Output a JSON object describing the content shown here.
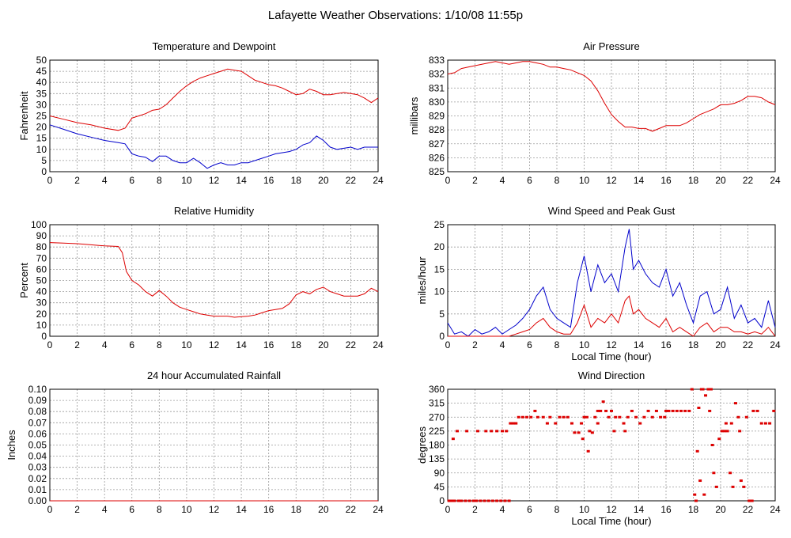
{
  "page": {
    "title": "Lafayette Weather Observations: 1/10/08 11:55p"
  },
  "colors": {
    "red": "#dd0000",
    "blue": "#0000cc",
    "grid": "#9a9a9a"
  },
  "chart_data": [
    {
      "id": "temp",
      "type": "line",
      "title": "Temperature and Dewpoint",
      "xlabel": "",
      "ylabel": "Fahrenheit",
      "xlim": [
        0,
        24
      ],
      "ylim": [
        0,
        50
      ],
      "xticks": [
        "0",
        "2",
        "4",
        "6",
        "8",
        "10",
        "12",
        "14",
        "16",
        "18",
        "20",
        "22",
        "24"
      ],
      "yticks": [
        "0",
        "5",
        "10",
        "15",
        "20",
        "25",
        "30",
        "35",
        "40",
        "45",
        "50"
      ],
      "grid": true,
      "series": [
        {
          "color": "#dd0000",
          "x": [
            0,
            1,
            2,
            3,
            4,
            5,
            5.5,
            6,
            6.5,
            7,
            7.5,
            8,
            8.5,
            9,
            9.5,
            10,
            10.5,
            11,
            11.5,
            12,
            12.5,
            13,
            13.5,
            14,
            14.5,
            15,
            15.5,
            16,
            16.5,
            17,
            17.5,
            18,
            18.5,
            19,
            19.5,
            20,
            20.5,
            21,
            21.5,
            22,
            22.5,
            23,
            23.5,
            24
          ],
          "y": [
            25,
            23.5,
            22,
            21,
            19.5,
            18.5,
            19.5,
            24,
            25,
            26,
            27.5,
            28,
            30,
            33,
            36,
            38.5,
            40.5,
            42,
            43,
            44,
            45,
            46,
            45.5,
            45,
            43,
            41,
            40,
            39,
            38.5,
            37.5,
            36,
            34.5,
            35,
            37,
            36,
            34.5,
            34.5,
            35,
            35.5,
            35,
            34.5,
            33,
            31,
            33
          ]
        },
        {
          "color": "#0000cc",
          "x": [
            0,
            1,
            2,
            3,
            4,
            5,
            5.5,
            6,
            6.5,
            7,
            7.5,
            8,
            8.5,
            9,
            9.5,
            10,
            10.5,
            11,
            11.5,
            12,
            12.5,
            13,
            13.5,
            14,
            14.5,
            15,
            15.5,
            16,
            16.5,
            17,
            17.5,
            18,
            18.5,
            19,
            19.5,
            20,
            20.5,
            21,
            21.5,
            22,
            22.5,
            23,
            23.5,
            24
          ],
          "y": [
            21,
            19,
            17,
            15.5,
            14,
            13,
            12.5,
            8,
            7,
            6.5,
            4.5,
            7,
            7,
            5,
            4,
            4,
            6,
            4,
            1.5,
            3,
            4,
            3,
            3,
            4,
            4,
            5,
            6,
            7,
            8,
            8.5,
            9,
            10,
            12,
            13,
            16,
            14,
            11,
            10,
            10.5,
            11,
            10,
            11,
            11,
            11
          ]
        }
      ]
    },
    {
      "id": "pressure",
      "type": "line",
      "title": "Air Pressure",
      "xlabel": "",
      "ylabel": "millibars",
      "xlim": [
        0,
        24
      ],
      "ylim": [
        825,
        833
      ],
      "xticks": [
        "0",
        "2",
        "4",
        "6",
        "8",
        "10",
        "12",
        "14",
        "16",
        "18",
        "20",
        "22",
        "24"
      ],
      "yticks": [
        "825",
        "826",
        "827",
        "828",
        "829",
        "830",
        "831",
        "832",
        "833"
      ],
      "grid": true,
      "series": [
        {
          "color": "#dd0000",
          "x": [
            0,
            0.5,
            1,
            1.5,
            2,
            2.5,
            3,
            3.5,
            4,
            4.5,
            5,
            5.5,
            6,
            6.5,
            7,
            7.5,
            8,
            8.5,
            9,
            9.5,
            10,
            10.5,
            11,
            11.5,
            12,
            12.5,
            13,
            13.5,
            14,
            14.5,
            15,
            15.5,
            16,
            16.5,
            17,
            17.5,
            18,
            18.5,
            19,
            19.5,
            20,
            20.5,
            21,
            21.5,
            22,
            22.5,
            23,
            23.5,
            24
          ],
          "y": [
            832,
            832.1,
            832.4,
            832.5,
            832.6,
            832.7,
            832.8,
            832.9,
            832.8,
            832.7,
            832.8,
            832.9,
            832.9,
            832.8,
            832.7,
            832.5,
            832.5,
            832.4,
            832.3,
            832.1,
            831.9,
            831.5,
            830.8,
            829.9,
            829.1,
            828.6,
            828.2,
            828.2,
            828.1,
            828.1,
            827.9,
            828.1,
            828.3,
            828.3,
            828.3,
            828.5,
            828.8,
            829.1,
            829.3,
            829.5,
            829.8,
            829.8,
            829.9,
            830.1,
            830.4,
            830.4,
            830.3,
            830,
            829.8
          ]
        }
      ]
    },
    {
      "id": "humidity",
      "type": "line",
      "title": "Relative Humidity",
      "xlabel": "",
      "ylabel": "Percent",
      "xlim": [
        0,
        24
      ],
      "ylim": [
        0,
        100
      ],
      "xticks": [
        "0",
        "2",
        "4",
        "6",
        "8",
        "10",
        "12",
        "14",
        "16",
        "18",
        "20",
        "22",
        "24"
      ],
      "yticks": [
        "0",
        "10",
        "20",
        "30",
        "40",
        "50",
        "60",
        "70",
        "80",
        "90",
        "100"
      ],
      "grid": true,
      "series": [
        {
          "color": "#dd0000",
          "x": [
            0,
            1,
            2,
            3,
            4,
            5,
            5.3,
            5.6,
            6,
            6.5,
            7,
            7.5,
            8,
            8.5,
            9,
            9.5,
            10,
            10.5,
            11,
            11.5,
            12,
            12.5,
            13,
            13.5,
            14,
            14.5,
            15,
            15.5,
            16,
            16.5,
            17,
            17.5,
            18,
            18.5,
            19,
            19.5,
            20,
            20.5,
            21,
            21.5,
            22,
            22.5,
            23,
            23.5,
            24
          ],
          "y": [
            84,
            83.5,
            83,
            82,
            81,
            80.5,
            75,
            58,
            50,
            46,
            40,
            36,
            41,
            36,
            30,
            26,
            24,
            22,
            20,
            19,
            18,
            18,
            18,
            17,
            17.5,
            18,
            19,
            21,
            23,
            24,
            25,
            29,
            37,
            40,
            38,
            42,
            44,
            40,
            38,
            36,
            36,
            36,
            38,
            43,
            40
          ]
        }
      ]
    },
    {
      "id": "wind",
      "type": "line",
      "title": "Wind Speed and Peak Gust",
      "xlabel": "Local Time (hour)",
      "ylabel": "miles/hour",
      "xlim": [
        0,
        24
      ],
      "ylim": [
        0,
        25
      ],
      "xticks": [
        "0",
        "2",
        "4",
        "6",
        "8",
        "10",
        "12",
        "14",
        "16",
        "18",
        "20",
        "22",
        "24"
      ],
      "yticks": [
        "0",
        "5",
        "10",
        "15",
        "20",
        "25"
      ],
      "grid": true,
      "series": [
        {
          "color": "#0000cc",
          "x": [
            0,
            0.5,
            1,
            1.5,
            2,
            2.5,
            3,
            3.5,
            4,
            4.5,
            5,
            5.5,
            6,
            6.5,
            7,
            7.5,
            8,
            8.5,
            9,
            9.5,
            10,
            10.5,
            11,
            11.5,
            12,
            12.5,
            13,
            13.3,
            13.6,
            14,
            14.5,
            15,
            15.5,
            16,
            16.5,
            17,
            17.5,
            18,
            18.5,
            19,
            19.5,
            20,
            20.5,
            21,
            21.5,
            22,
            22.5,
            23,
            23.5,
            24
          ],
          "y": [
            3,
            0.5,
            1,
            0,
            1.5,
            0.5,
            1,
            2,
            0.5,
            1.5,
            2.5,
            4,
            6,
            9,
            11,
            6,
            4,
            3,
            2,
            12,
            18,
            10,
            16,
            12,
            14,
            10,
            20,
            24,
            15,
            17,
            14,
            12,
            11,
            15,
            9,
            12,
            7,
            3,
            9,
            10,
            5,
            6,
            11,
            4,
            7,
            3,
            4,
            2,
            8,
            2
          ]
        },
        {
          "color": "#dd0000",
          "x": [
            0,
            0.5,
            1,
            1.5,
            2,
            2.5,
            3,
            3.5,
            4,
            4.5,
            5,
            5.5,
            6,
            6.5,
            7,
            7.5,
            8,
            8.5,
            9,
            9.5,
            10,
            10.5,
            11,
            11.5,
            12,
            12.5,
            13,
            13.3,
            13.6,
            14,
            14.5,
            15,
            15.5,
            16,
            16.5,
            17,
            17.5,
            18,
            18.5,
            19,
            19.5,
            20,
            20.5,
            21,
            21.5,
            22,
            22.5,
            23,
            23.5,
            24
          ],
          "y": [
            0,
            0,
            0,
            0,
            0,
            0,
            0,
            0,
            0,
            0,
            0.5,
            1,
            1.5,
            3,
            4,
            2,
            1,
            0.5,
            0.5,
            3,
            7,
            2,
            4,
            3,
            5,
            3,
            8,
            9,
            5,
            6,
            4,
            3,
            2,
            4,
            1,
            2,
            1,
            0,
            2,
            3,
            1,
            2,
            2,
            1,
            1,
            0.5,
            1,
            0.5,
            2,
            0
          ]
        }
      ]
    },
    {
      "id": "rain",
      "type": "line",
      "title": "24 hour Accumulated Rainfall",
      "xlabel": "",
      "ylabel": "Inches",
      "xlim": [
        0,
        24
      ],
      "ylim": [
        0,
        0.1
      ],
      "xticks": [
        "0",
        "2",
        "4",
        "6",
        "8",
        "10",
        "12",
        "14",
        "16",
        "18",
        "20",
        "22",
        "24"
      ],
      "yticks": [
        "0.00",
        "0.01",
        "0.02",
        "0.03",
        "0.04",
        "0.05",
        "0.06",
        "0.07",
        "0.08",
        "0.09",
        "0.10"
      ],
      "grid": true,
      "series": [
        {
          "color": "#dd0000",
          "x": [
            0,
            24
          ],
          "y": [
            0,
            0
          ]
        }
      ]
    },
    {
      "id": "direction",
      "type": "scatter",
      "title": "Wind Direction",
      "xlabel": "Local Time (hour)",
      "ylabel": "degrees",
      "xlim": [
        0,
        24
      ],
      "ylim": [
        0,
        360
      ],
      "xticks": [
        "0",
        "2",
        "4",
        "6",
        "8",
        "10",
        "12",
        "14",
        "16",
        "18",
        "20",
        "22",
        "24"
      ],
      "yticks": [
        "0",
        "45",
        "90",
        "135",
        "180",
        "225",
        "270",
        "315",
        "360"
      ],
      "grid": true,
      "series": [
        {
          "color": "#dd0000",
          "x": [
            0.1,
            0.3,
            0.5,
            0.8,
            1.0,
            1.3,
            1.6,
            1.9,
            2.1,
            2.4,
            2.7,
            3.0,
            3.3,
            3.6,
            3.9,
            4.2,
            4.5,
            0.4,
            0.7,
            1.4,
            2.2,
            2.8,
            3.2,
            3.6,
            4.0,
            4.3,
            4.6,
            4.8,
            5.0,
            5.2,
            5.5,
            5.8,
            6.1,
            6.4,
            6.6,
            7.0,
            7.3,
            7.5,
            7.9,
            8.2,
            8.5,
            8.8,
            9.1,
            9.3,
            9.6,
            9.8,
            10.0,
            10.2,
            10.4,
            10.6,
            10.8,
            11.0,
            11.2,
            11.4,
            11.6,
            11.8,
            12.0,
            12.3,
            12.6,
            12.9,
            13.2,
            13.5,
            13.8,
            14.1,
            14.4,
            14.7,
            15.0,
            15.3,
            15.6,
            15.9,
            16.2,
            16.5,
            16.8,
            17.1,
            17.4,
            17.7,
            17.9,
            18.1,
            18.3,
            18.5,
            18.7,
            18.9,
            19.1,
            19.3,
            19.5,
            19.7,
            19.9,
            20.1,
            20.3,
            20.5,
            20.7,
            20.9,
            21.1,
            21.3,
            21.5,
            21.7,
            21.9,
            22.1,
            22.4,
            22.7,
            23.0,
            23.3,
            23.6,
            23.9,
            18.2,
            18.4,
            18.6,
            18.8,
            19.2,
            19.4,
            20.4,
            20.8,
            21.4,
            22.3,
            9.9,
            10.3,
            11.0,
            12.2,
            13.0,
            16.0
          ],
          "y": [
            0,
            0,
            0,
            0,
            0,
            0,
            0,
            0,
            0,
            0,
            0,
            0,
            0,
            0,
            0,
            0,
            0,
            200,
            225,
            225,
            225,
            225,
            225,
            225,
            225,
            225,
            250,
            250,
            250,
            270,
            270,
            270,
            270,
            290,
            270,
            270,
            250,
            270,
            250,
            270,
            270,
            270,
            250,
            220,
            220,
            250,
            270,
            270,
            225,
            220,
            270,
            290,
            290,
            320,
            290,
            270,
            290,
            270,
            270,
            250,
            270,
            290,
            270,
            250,
            270,
            290,
            270,
            290,
            270,
            270,
            290,
            290,
            290,
            290,
            290,
            290,
            360,
            20,
            160,
            65,
            360,
            340,
            360,
            360,
            90,
            45,
            200,
            225,
            225,
            225,
            90,
            45,
            315,
            270,
            65,
            45,
            270,
            0,
            290,
            290,
            250,
            250,
            250,
            290,
            0,
            300,
            360,
            20,
            290,
            180,
            250,
            250,
            225,
            0,
            200,
            160,
            250,
            225,
            225,
            290
          ]
        }
      ]
    }
  ]
}
